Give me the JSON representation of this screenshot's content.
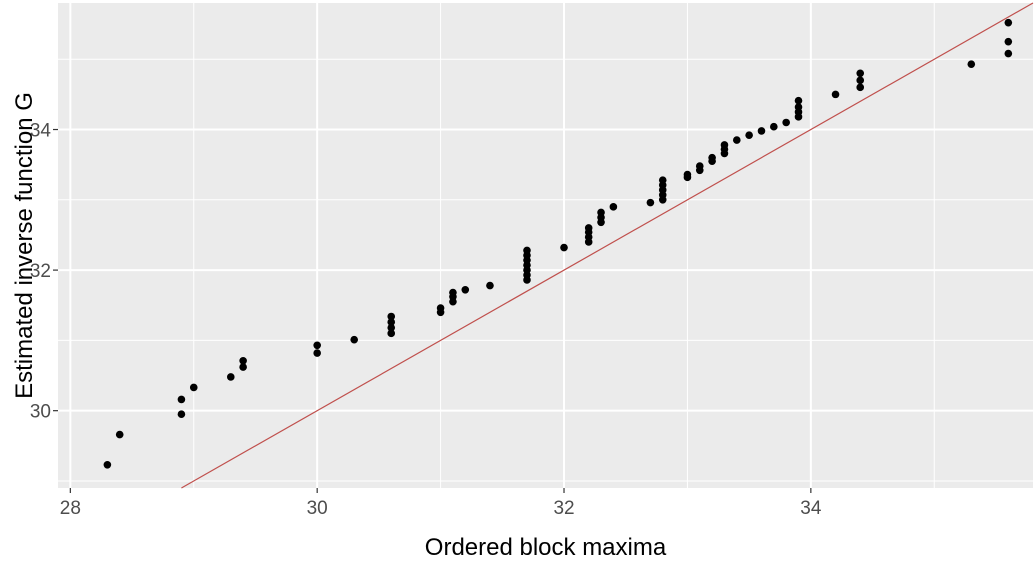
{
  "chart_data": {
    "type": "scatter",
    "title": "",
    "xlabel": "Ordered block maxima",
    "ylabel": "Estimated inverse function G",
    "xlim": [
      27.9,
      35.8
    ],
    "ylim": [
      28.9,
      35.8
    ],
    "x_ticks": [
      28,
      30,
      32,
      34
    ],
    "x_tick_labels": [
      "28",
      "30",
      "32",
      "34"
    ],
    "y_ticks": [
      30,
      32,
      34
    ],
    "y_tick_labels": [
      "30",
      "32",
      "34"
    ],
    "grid": true,
    "reference_line": {
      "type": "identity",
      "slope": 1,
      "intercept": 0,
      "color": "#c0504d"
    },
    "points": [
      [
        28.3,
        29.23
      ],
      [
        28.4,
        29.66
      ],
      [
        28.9,
        29.95
      ],
      [
        28.9,
        30.16
      ],
      [
        29.0,
        30.33
      ],
      [
        29.3,
        30.48
      ],
      [
        29.4,
        30.62
      ],
      [
        29.4,
        30.71
      ],
      [
        30.0,
        30.82
      ],
      [
        30.0,
        30.93
      ],
      [
        30.3,
        31.01
      ],
      [
        30.6,
        31.1
      ],
      [
        30.6,
        31.18
      ],
      [
        30.6,
        31.26
      ],
      [
        30.6,
        31.34
      ],
      [
        31.0,
        31.4
      ],
      [
        31.0,
        31.46
      ],
      [
        31.1,
        31.55
      ],
      [
        31.1,
        31.62
      ],
      [
        31.1,
        31.68
      ],
      [
        31.2,
        31.72
      ],
      [
        31.4,
        31.78
      ],
      [
        31.7,
        31.86
      ],
      [
        31.7,
        31.93
      ],
      [
        31.7,
        32.0
      ],
      [
        31.7,
        32.07
      ],
      [
        31.7,
        32.14
      ],
      [
        31.7,
        32.21
      ],
      [
        31.7,
        32.28
      ],
      [
        32.0,
        32.32
      ],
      [
        32.2,
        32.4
      ],
      [
        32.2,
        32.47
      ],
      [
        32.2,
        32.54
      ],
      [
        32.2,
        32.6
      ],
      [
        32.3,
        32.68
      ],
      [
        32.3,
        32.75
      ],
      [
        32.3,
        32.82
      ],
      [
        32.4,
        32.9
      ],
      [
        32.7,
        32.96
      ],
      [
        32.8,
        33.0
      ],
      [
        32.8,
        33.07
      ],
      [
        32.8,
        33.14
      ],
      [
        32.8,
        33.21
      ],
      [
        32.8,
        33.28
      ],
      [
        33.0,
        33.32
      ],
      [
        33.0,
        33.36
      ],
      [
        33.1,
        33.42
      ],
      [
        33.1,
        33.48
      ],
      [
        33.2,
        33.55
      ],
      [
        33.2,
        33.6
      ],
      [
        33.3,
        33.66
      ],
      [
        33.3,
        33.72
      ],
      [
        33.3,
        33.78
      ],
      [
        33.4,
        33.85
      ],
      [
        33.5,
        33.92
      ],
      [
        33.6,
        33.98
      ],
      [
        33.7,
        34.04
      ],
      [
        33.8,
        34.1
      ],
      [
        33.9,
        34.18
      ],
      [
        33.9,
        34.25
      ],
      [
        33.9,
        34.32
      ],
      [
        33.9,
        34.41
      ],
      [
        34.2,
        34.5
      ],
      [
        34.4,
        34.6
      ],
      [
        34.4,
        34.7
      ],
      [
        34.4,
        34.8
      ],
      [
        35.3,
        34.93
      ],
      [
        35.6,
        35.08
      ],
      [
        35.6,
        35.25
      ],
      [
        35.6,
        35.52
      ]
    ],
    "point_color": "#000000",
    "panel_background": "#ebebeb",
    "grid_color": "#ffffff"
  }
}
